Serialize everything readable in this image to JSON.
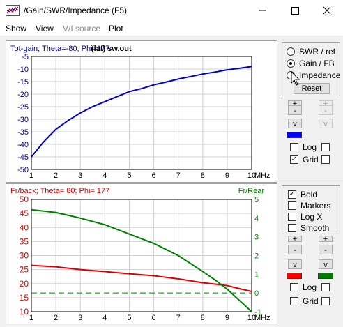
{
  "window": {
    "title": "/Gain/SWR/Impedance (F5)",
    "icons": {
      "app": "app-graph-icon",
      "minimize": "minimize-icon",
      "maximize": "maximize-icon",
      "close": "close-icon"
    }
  },
  "menu": [
    "Show",
    "View",
    "V/I source",
    "Plot"
  ],
  "menu_disabled": [
    false,
    false,
    true,
    false
  ],
  "top_chart": {
    "title": "Tot-gain; Theta=-80; Phi=177",
    "file_label": "(lat) sw.out",
    "color": "#0000cc",
    "axis_label_color": "#000080",
    "x_unit": "MHz"
  },
  "bottom_chart": {
    "title": "Fr/back; Theta= 80; Phi= 177",
    "right_title": "Fr/Rear",
    "left_color": "#dd0000",
    "right_color": "#008000",
    "x_unit": "MHz"
  },
  "chart_data": [
    {
      "type": "line",
      "x": [
        1,
        1.5,
        2,
        2.5,
        3,
        3.5,
        4,
        4.5,
        5,
        5.5,
        6,
        6.5,
        7,
        7.5,
        8,
        8.5,
        9,
        9.5,
        10
      ],
      "series": [
        {
          "values": [
            -45,
            -39,
            -34,
            -30.5,
            -27.5,
            -25,
            -23,
            -21,
            -19,
            -17.8,
            -16.3,
            -15.2,
            -14,
            -13,
            -12,
            -11.2,
            -10.3,
            -9.7,
            -9
          ]
        }
      ],
      "xlim": [
        1,
        10
      ],
      "ylim": [
        -50,
        -5
      ],
      "xticks": [
        1,
        2,
        3,
        4,
        5,
        6,
        7,
        8,
        9,
        10
      ],
      "yticks": [
        -50,
        -45,
        -40,
        -35,
        -30,
        -25,
        -20,
        -15,
        -10,
        -5
      ],
      "grid": true
    },
    {
      "type": "line",
      "x": [
        1,
        2,
        3,
        4,
        5,
        6,
        7,
        8,
        8.5,
        9,
        9.5,
        10
      ],
      "series": [
        {
          "axis": "left",
          "values": [
            26.5,
            26,
            25,
            24.3,
            23.5,
            22.8,
            21.7,
            20.3,
            19.8,
            19.3,
            18.2,
            17.2
          ]
        },
        {
          "axis": "right",
          "values": [
            4.45,
            4.3,
            4.0,
            3.65,
            3.15,
            2.65,
            2.0,
            1.15,
            0.7,
            0.2,
            -0.4,
            -1.0
          ]
        },
        {
          "axis": "right",
          "style": "dashed",
          "values": [
            0,
            0,
            0,
            0,
            0,
            0,
            0,
            0,
            0,
            0,
            0,
            0
          ]
        }
      ],
      "xlim": [
        1,
        10
      ],
      "ylim_left": [
        10,
        50
      ],
      "ylim_right": [
        -1,
        5
      ],
      "xticks": [
        1,
        2,
        3,
        4,
        5,
        6,
        7,
        8,
        9,
        10
      ],
      "yticks_left": [
        10,
        15,
        20,
        25,
        30,
        35,
        40,
        45,
        50
      ],
      "yticks_right": [
        -1,
        0,
        1,
        2,
        3,
        4,
        5
      ],
      "grid": true
    }
  ],
  "panel_top": {
    "radios": [
      "SWR / ref",
      "Gain / FB",
      "Impedance"
    ],
    "selected": 1,
    "reset": "Reset",
    "btn_plus": "+",
    "btn_minus": "-",
    "btn_v": "v",
    "log_label": "Log",
    "grid_label": "Grid",
    "log_checked": false,
    "grid_checked": true,
    "swatch_color": "#0000ff"
  },
  "panel_bottom": {
    "checks": [
      "Bold",
      "Markers",
      "Log X",
      "Smooth"
    ],
    "checked": [
      true,
      false,
      false,
      false
    ],
    "btn_plus": "+",
    "btn_minus": "-",
    "btn_v": "v",
    "log_label": "Log",
    "grid_label": "Grid",
    "log_checked": false,
    "grid_checked": false,
    "swatch_left": "#ff0000",
    "swatch_right": "#008000"
  }
}
